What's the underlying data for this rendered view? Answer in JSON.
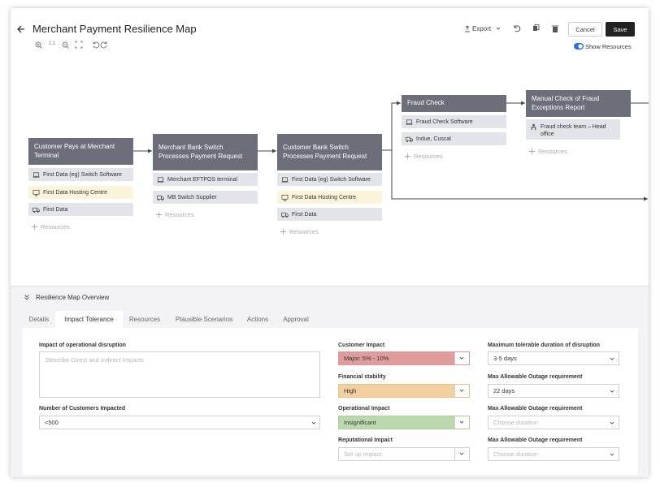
{
  "header": {
    "title": "Merchant Payment Resilience Map",
    "export": "Export",
    "cancel": "Cancel",
    "save": "Save",
    "show_resources": "Show Resources",
    "zoom_reset": "1:1"
  },
  "nodes": [
    {
      "label": "Customer Pays at Merchant Terminal",
      "resources": [
        "First Data (eg) Switch Software",
        "First Data Hosting Centre",
        "First Data"
      ],
      "add": "Resources"
    },
    {
      "label": "Merchant Bank Switch Processes Payment Request",
      "resources": [
        "Merchant EFTPOS terminal",
        "MB Switch Supplier"
      ],
      "add": "Resources"
    },
    {
      "label": "Customer Bank Switch Processes Payment Request",
      "resources": [
        "First Data (eg) Switch Software",
        "First Data Hosting Centre",
        "First Data"
      ],
      "add": "Resources"
    },
    {
      "label": "Fraud Check",
      "resources": [
        "Fraud Check Software",
        "Indue, Cuscal"
      ],
      "add": "Resources"
    },
    {
      "label": "Manual Check of  Fraud Exceptions Report",
      "resources": [
        "Fraud check team – Head office"
      ],
      "add": "Resources"
    }
  ],
  "panel": {
    "title": "Resilience Map Overview",
    "tabs": [
      "Details",
      "Impact Tolerance",
      "Resources",
      "Plausible Scenarios",
      "Actions",
      "Approval"
    ]
  },
  "form": {
    "impact": {
      "label": "Impact of operational disruption",
      "placeholder": "Describe Direct and Indirect Impacts"
    },
    "customers": {
      "label": "Number of Customers Impacted",
      "value": "<500"
    },
    "customer_impact": {
      "label": "Customer Impact",
      "value": "Major: 5% - 10%"
    },
    "financial": {
      "label": "Financial stability",
      "value": "High"
    },
    "operational": {
      "label": "Operational Impact",
      "value": "Insignificant"
    },
    "reputational": {
      "label": "Reputational Impact",
      "placeholder": "Set up Impact"
    },
    "max_duration": {
      "label": "Maximum tolerable duration of disruption",
      "value": "3-5 days"
    },
    "outage_1": {
      "label": "Max Allowable Outage requirement",
      "value": "22 days"
    },
    "outage_2": {
      "label": "Max Allowable Outage requirement",
      "placeholder": "Choose duration"
    },
    "outage_3": {
      "label": "Max Allowable Outage requirement",
      "placeholder": "Choose duration"
    }
  }
}
